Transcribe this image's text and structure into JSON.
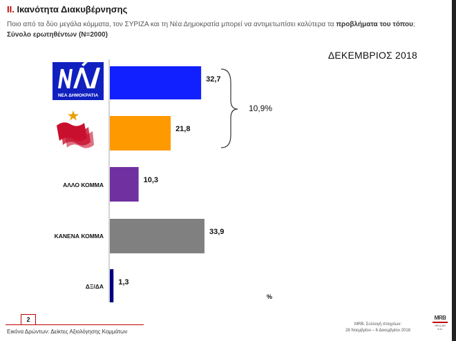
{
  "header": {
    "section_number": "II.",
    "title": "Ικανότητα Διακυβέρνησης",
    "question_prefix": "Ποιο από τα δύο μεγάλα κόμματα, τον ΣΥΡΙΖΑ και τη Νέα Δημοκρατία μπορεί να αντιμετωπίσει καλύτερα  τα",
    "question_bold": "προβλήματα του τόπου",
    "question_suffix": ";",
    "sample": "Σύνολο ερωτηθέντων (Ν=2000)",
    "month": "ΔΕΚΕΜΒΡΙΟΣ 2018"
  },
  "chart_data": {
    "type": "bar",
    "orientation": "horizontal",
    "categories": [
      "ΝΕΑ ΔΗΜΟΚΡΑΤΙΑ",
      "ΣΥΡΙΖΑ",
      "ΑΛΛΟ ΚΟΜΜΑ",
      "ΚΑΝΕΝΑ ΚΟΜΜΑ",
      "ΔΞ/ΔΑ"
    ],
    "values": [
      32.7,
      21.8,
      10.3,
      33.9,
      1.3
    ],
    "value_labels": [
      "32,7",
      "21,8",
      "10,3",
      "33,9",
      "1,3"
    ],
    "colors": [
      "#1020ff",
      "#ff9900",
      "#7030a0",
      "#808080",
      "#000080"
    ],
    "unit": "%",
    "bracket_label": "10,9%",
    "xlim": [
      0,
      40
    ]
  },
  "logos": {
    "nd_text": "ΝΕΑ ΔΗΜΟΚΡΑΤΙΑ",
    "nd_colors": {
      "background": "#1020c0",
      "letters": "#ffffff"
    },
    "syriza_colors": {
      "star": "#e8a000",
      "flag": "#c8102e"
    }
  },
  "footer": {
    "page_number": "2",
    "left_text": "Εικόνα Δρώντων: Δείκτες Αξιολόγησης  Κομμάτων",
    "right_line1": "MRB, Συλλογή στοιχείων:",
    "right_line2": "28 Νοεμβρίου – 6 Δεκεμβρίου 2018",
    "logo_text": "MRB",
    "logo_sub": "HELLAS S.A."
  }
}
